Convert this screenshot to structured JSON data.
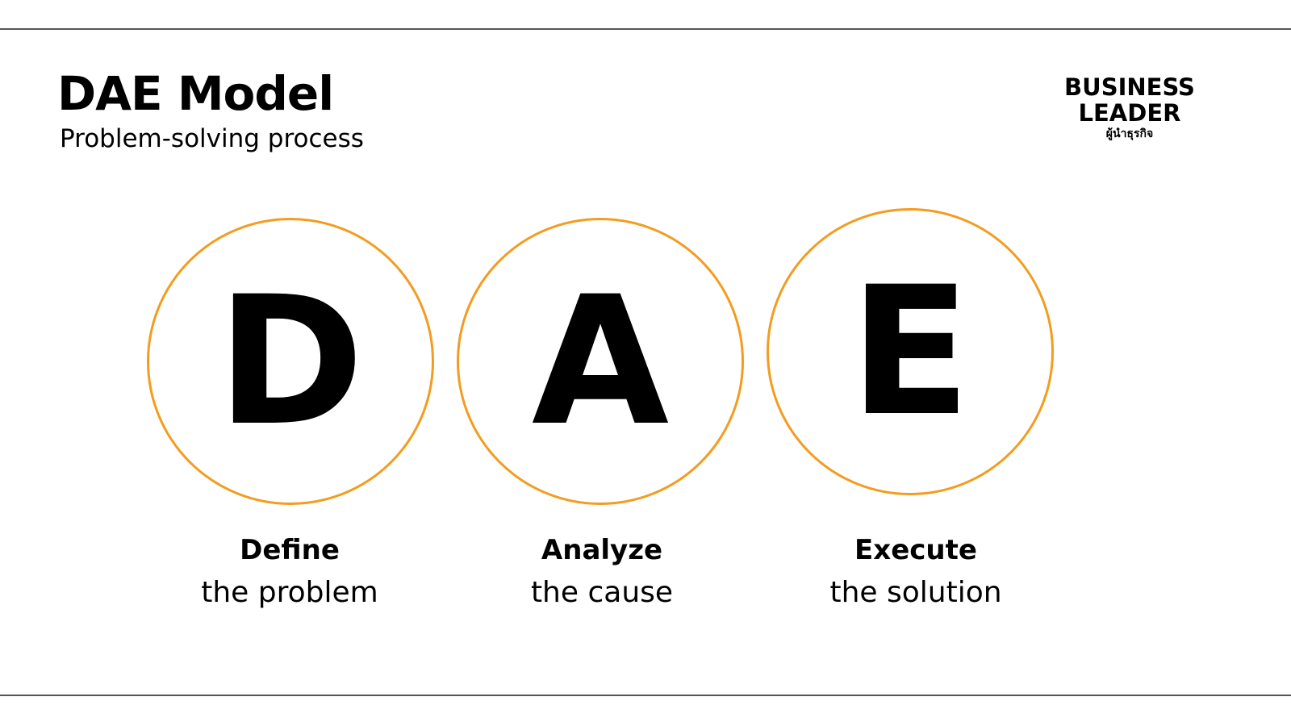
{
  "title": "DAE Model",
  "subtitle": "Problem-solving process",
  "logo": {
    "line1": "BUSINESS",
    "line2": "LEADER",
    "line3": "ผู้นำธุรกิจ"
  },
  "accent_color": "#F39C1F",
  "steps": [
    {
      "letter": "D",
      "title": "Define",
      "desc": "the problem"
    },
    {
      "letter": "A",
      "title": "Analyze",
      "desc": "the cause"
    },
    {
      "letter": "E",
      "title": "Execute",
      "desc": "the solution"
    }
  ]
}
